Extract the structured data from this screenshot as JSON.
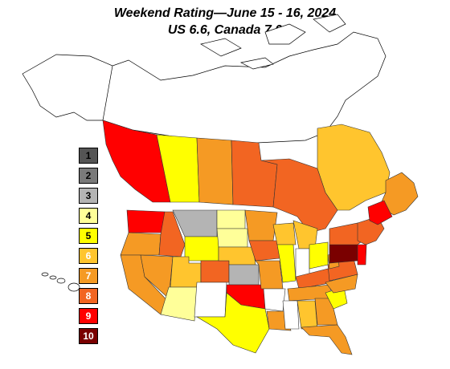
{
  "title": {
    "line1": "Weekend Rating—June 15 - 16, 2024",
    "line2": "US 6.6, Canada 7.0"
  },
  "legend": [
    {
      "label": "1",
      "color": "#555555",
      "text_color": "#000000"
    },
    {
      "label": "2",
      "color": "#7a7a7a",
      "text_color": "#000000"
    },
    {
      "label": "3",
      "color": "#b4b4b4",
      "text_color": "#000000"
    },
    {
      "label": "4",
      "color": "#ffff99",
      "text_color": "#000000"
    },
    {
      "label": "5",
      "color": "#ffff00",
      "text_color": "#000000"
    },
    {
      "label": "6",
      "color": "#ffc52e",
      "text_color": "#ffffff"
    },
    {
      "label": "7",
      "color": "#f59a24",
      "text_color": "#ffffff"
    },
    {
      "label": "8",
      "color": "#f26522",
      "text_color": "#ffffff"
    },
    {
      "label": "9",
      "color": "#ff0000",
      "text_color": "#ffffff"
    },
    {
      "label": "10",
      "color": "#7a0000",
      "text_color": "#ffffff"
    }
  ],
  "regions": [
    {
      "name": "British Columbia",
      "rating": 9
    },
    {
      "name": "Alberta",
      "rating": 5
    },
    {
      "name": "Saskatchewan",
      "rating": 7
    },
    {
      "name": "Manitoba",
      "rating": 8
    },
    {
      "name": "Ontario",
      "rating": 8
    },
    {
      "name": "Quebec",
      "rating": 6
    },
    {
      "name": "Atlantic Canada",
      "rating": 7
    },
    {
      "name": "Washington",
      "rating": 9
    },
    {
      "name": "Oregon",
      "rating": 7
    },
    {
      "name": "California",
      "rating": 7
    },
    {
      "name": "Idaho",
      "rating": 8
    },
    {
      "name": "Nevada",
      "rating": 7
    },
    {
      "name": "Montana",
      "rating": 3
    },
    {
      "name": "Wyoming",
      "rating": 5
    },
    {
      "name": "Utah",
      "rating": 6
    },
    {
      "name": "Arizona",
      "rating": 4
    },
    {
      "name": "Colorado",
      "rating": 8
    },
    {
      "name": "New Mexico",
      "rating": 0
    },
    {
      "name": "North Dakota",
      "rating": 4
    },
    {
      "name": "South Dakota",
      "rating": 4
    },
    {
      "name": "Nebraska",
      "rating": 6
    },
    {
      "name": "Kansas",
      "rating": 3
    },
    {
      "name": "Oklahoma",
      "rating": 9
    },
    {
      "name": "Texas",
      "rating": 5
    },
    {
      "name": "Minnesota",
      "rating": 7
    },
    {
      "name": "Iowa",
      "rating": 8
    },
    {
      "name": "Missouri",
      "rating": 7
    },
    {
      "name": "Arkansas",
      "rating": 0
    },
    {
      "name": "Louisiana",
      "rating": 7
    },
    {
      "name": "Wisconsin",
      "rating": 6
    },
    {
      "name": "Illinois",
      "rating": 5
    },
    {
      "name": "Michigan",
      "rating": 6
    },
    {
      "name": "Indiana",
      "rating": 0
    },
    {
      "name": "Ohio",
      "rating": 5
    },
    {
      "name": "Kentucky",
      "rating": 8
    },
    {
      "name": "Tennessee",
      "rating": 7
    },
    {
      "name": "Mississippi",
      "rating": 0
    },
    {
      "name": "Alabama",
      "rating": 6
    },
    {
      "name": "Georgia",
      "rating": 7
    },
    {
      "name": "Florida",
      "rating": 7
    },
    {
      "name": "South Carolina",
      "rating": 5
    },
    {
      "name": "North Carolina",
      "rating": 7
    },
    {
      "name": "Virginia",
      "rating": 8
    },
    {
      "name": "West Virginia",
      "rating": 7
    },
    {
      "name": "Pennsylvania",
      "rating": 10
    },
    {
      "name": "New York",
      "rating": 8
    },
    {
      "name": "New Jersey",
      "rating": 9
    },
    {
      "name": "New England",
      "rating": 8
    },
    {
      "name": "Maine",
      "rating": 9
    }
  ]
}
